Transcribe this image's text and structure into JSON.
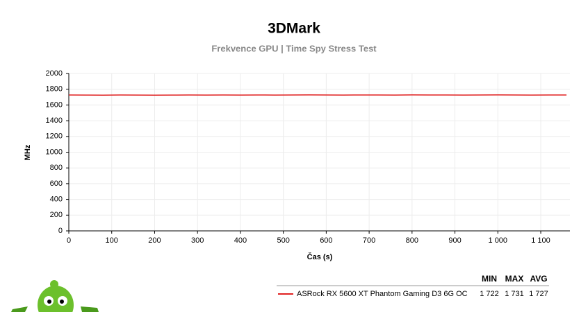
{
  "chart_data": {
    "type": "line",
    "title": "3DMark",
    "subtitle": "Frekvence GPU | Time Spy Stress Test",
    "x_label": "Čas (s)",
    "y_label": "MHz",
    "x": [
      0,
      40,
      80,
      120,
      160,
      200,
      240,
      280,
      320,
      360,
      400,
      440,
      480,
      520,
      560,
      600,
      640,
      680,
      720,
      760,
      800,
      840,
      880,
      920,
      960,
      1000,
      1040,
      1080,
      1120,
      1160
    ],
    "series": [
      {
        "name": "ASRock RX 5600 XT Phantom Gaming D3 6G OC",
        "color": "#e02020",
        "values": [
          1727,
          1726,
          1725,
          1727,
          1726,
          1725,
          1726,
          1727,
          1726,
          1727,
          1726,
          1727,
          1726,
          1727,
          1728,
          1727,
          1726,
          1727,
          1727,
          1726,
          1728,
          1727,
          1727,
          1726,
          1727,
          1728,
          1727,
          1726,
          1727,
          1727
        ],
        "stats": [
          {
            "value": 1722,
            "label": "1 722"
          },
          {
            "value": 1731,
            "label": "1 731"
          },
          {
            "value": 1727,
            "label": "1 727"
          }
        ]
      }
    ],
    "stats_headers": [
      "MIN",
      "MAX",
      "AVG"
    ],
    "xlim": [
      0,
      1168
    ],
    "ylim": [
      0,
      2000
    ],
    "xticks": [
      0,
      100,
      200,
      300,
      400,
      500,
      600,
      700,
      800,
      900,
      {
        "value": 1000,
        "label": "1 000"
      },
      {
        "value": 1100,
        "label": "1 100"
      }
    ],
    "yticks": [
      0,
      200,
      400,
      600,
      800,
      1000,
      1200,
      1400,
      1600,
      1800,
      2000
    ],
    "grid": true
  }
}
